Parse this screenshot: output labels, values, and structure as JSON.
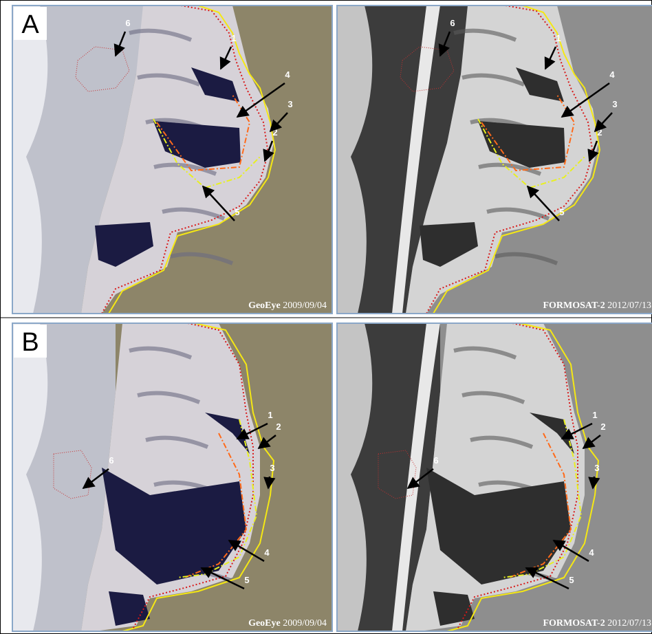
{
  "panels": [
    {
      "label": "A",
      "images": [
        {
          "sensor": "GeoEye",
          "date": "2009/09/04",
          "markers": [
            "1",
            "2",
            "3",
            "4",
            "5",
            "6"
          ]
        },
        {
          "sensor": "FORMOSAT-2",
          "date": "2012/07/13",
          "markers": [
            "1",
            "2",
            "3",
            "4",
            "5",
            "6"
          ]
        }
      ]
    },
    {
      "label": "B",
      "images": [
        {
          "sensor": "GeoEye",
          "date": "2009/09/04",
          "markers": [
            "1",
            "2",
            "3",
            "4",
            "5",
            "6"
          ]
        },
        {
          "sensor": "FORMOSAT-2",
          "date": "2012/07/13",
          "markers": [
            "1",
            "2",
            "3",
            "4",
            "5",
            "6"
          ]
        }
      ]
    }
  ]
}
